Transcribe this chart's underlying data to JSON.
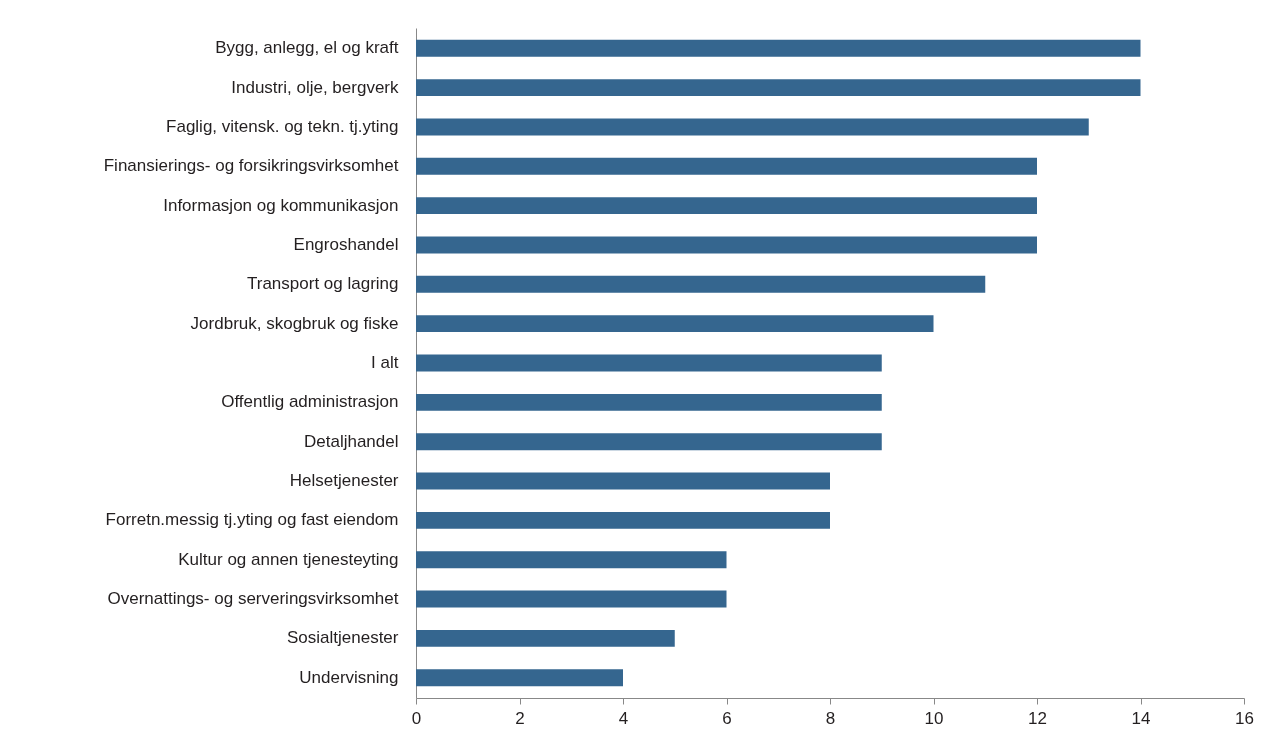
{
  "chart_data": {
    "type": "bar",
    "orientation": "horizontal",
    "categories": [
      "Bygg, anlegg, el og kraft",
      "Industri, olje, bergverk",
      "Faglig, vitensk. og tekn. tj.yting",
      "Finansierings- og forsikringsvirksomhet",
      "Informasjon og kommunikasjon",
      "Engroshandel",
      "Transport og lagring",
      "Jordbruk, skogbruk og fiske",
      "I alt",
      "Offentlig administrasjon",
      "Detaljhandel",
      "Helsetjenester",
      "Forretn.messig tj.yting og fast eiendom",
      "Kultur og annen tjenesteyting",
      "Overnattings- og serveringsvirksomhet",
      "Sosialtjenester",
      "Undervisning"
    ],
    "values": [
      14,
      14,
      13,
      12,
      12,
      12,
      11,
      10,
      9,
      9,
      9,
      8,
      8,
      6,
      6,
      5,
      4
    ],
    "color": "#35668f",
    "xlim": [
      0,
      16
    ],
    "xticks": [
      0,
      2,
      4,
      6,
      8,
      10,
      12,
      14,
      16
    ],
    "grid": false
  }
}
